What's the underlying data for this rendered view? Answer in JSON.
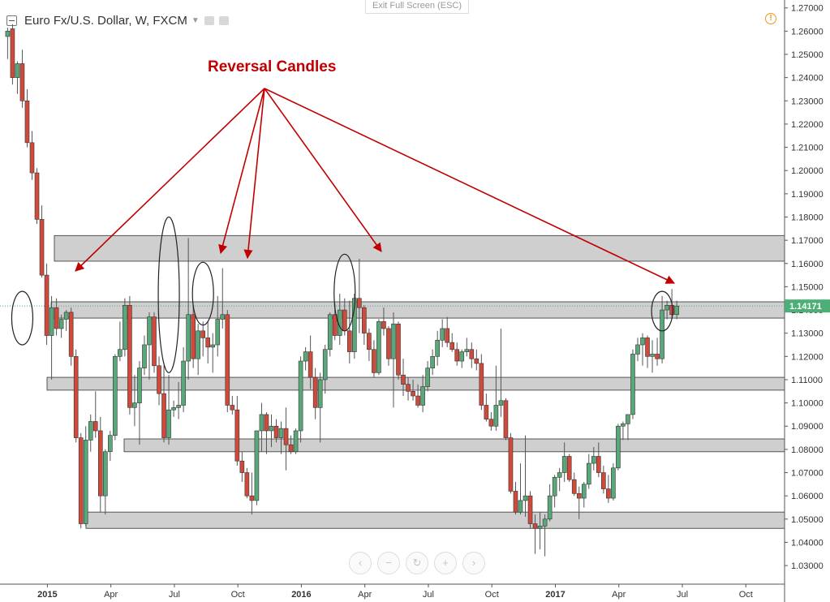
{
  "header": {
    "symbol": "Euro Fx/U.S. Dollar, W, FXCM",
    "exit_full_screen": "Exit Full Screen (ESC)"
  },
  "annotation": {
    "text": "Reversal Candles",
    "color": "#c00000"
  },
  "colors": {
    "up": "#5aa879",
    "down": "#d04a3b",
    "wick": "#555555",
    "zone_fill": "#cfcfcf",
    "zone_border": "#555555",
    "price_label": "#4caf78",
    "annotation": "#c00000"
  },
  "icons": {
    "hide": "square-minus-icon",
    "settings": "gear-icon",
    "alert": "alert-icon",
    "nav": [
      "chevron-left-icon",
      "minus-icon",
      "reset-icon",
      "plus-icon",
      "chevron-right-icon"
    ]
  },
  "chart_data": {
    "type": "candlestick",
    "title": "Euro Fx/U.S. Dollar, W, FXCM",
    "ylim": [
      1.022,
      1.272
    ],
    "y_ticks": [
      "1.27000",
      "1.26000",
      "1.25000",
      "1.24000",
      "1.23000",
      "1.22000",
      "1.21000",
      "1.20000",
      "1.19000",
      "1.18000",
      "1.17000",
      "1.16000",
      "1.15000",
      "1.14000",
      "1.13000",
      "1.12000",
      "1.11000",
      "1.10000",
      "1.09000",
      "1.08000",
      "1.07000",
      "1.06000",
      "1.05000",
      "1.04000",
      "1.03000"
    ],
    "current_price": "1.14171",
    "x_ticks": [
      {
        "label": "2015",
        "week": 0,
        "bold": true
      },
      {
        "label": "Apr",
        "week": 13
      },
      {
        "label": "Jul",
        "week": 26
      },
      {
        "label": "Oct",
        "week": 39
      },
      {
        "label": "2016",
        "week": 52,
        "bold": true
      },
      {
        "label": "Apr",
        "week": 65
      },
      {
        "label": "Jul",
        "week": 78
      },
      {
        "label": "Oct",
        "week": 91
      },
      {
        "label": "2017",
        "week": 104,
        "bold": true
      },
      {
        "label": "Apr",
        "week": 117
      },
      {
        "label": "Jul",
        "week": 130
      },
      {
        "label": "Oct",
        "week": 143
      }
    ],
    "zones": [
      [
        1.161,
        1.172
      ],
      [
        1.1365,
        1.1435
      ],
      [
        1.1055,
        1.111
      ],
      [
        1.079,
        1.0845
      ],
      [
        1.046,
        1.053
      ]
    ],
    "reversal_marks": [
      {
        "week": 3,
        "center": 1.1365,
        "half": 0.0115
      },
      {
        "week": 33,
        "center": 1.1465,
        "half": 0.0335
      },
      {
        "week": 40,
        "center": 1.147,
        "half": 0.0135
      },
      {
        "week": 69,
        "center": 1.1475,
        "half": 0.0165
      },
      {
        "week": 134,
        "center": 1.1395,
        "half": 0.0085
      }
    ],
    "candles_ohlc": [
      [
        1.2577,
        1.2615,
        1.248,
        1.26
      ],
      [
        1.261,
        1.263,
        1.237,
        1.24
      ],
      [
        1.24,
        1.247,
        1.233,
        1.246
      ],
      [
        1.246,
        1.252,
        1.227,
        1.23
      ],
      [
        1.23,
        1.235,
        1.21,
        1.212
      ],
      [
        1.212,
        1.217,
        1.196,
        1.199
      ],
      [
        1.199,
        1.201,
        1.177,
        1.179
      ],
      [
        1.179,
        1.185,
        1.154,
        1.155
      ],
      [
        1.155,
        1.16,
        1.125,
        1.129
      ],
      [
        1.129,
        1.146,
        1.11,
        1.141
      ],
      [
        1.141,
        1.145,
        1.129,
        1.132
      ],
      [
        1.132,
        1.138,
        1.128,
        1.136
      ],
      [
        1.136,
        1.14,
        1.131,
        1.139
      ],
      [
        1.139,
        1.141,
        1.116,
        1.12
      ],
      [
        1.12,
        1.123,
        1.083,
        1.085
      ],
      [
        1.085,
        1.087,
        1.046,
        1.048
      ],
      [
        1.048,
        1.09,
        1.047,
        1.084
      ],
      [
        1.084,
        1.095,
        1.079,
        1.092
      ],
      [
        1.092,
        1.105,
        1.085,
        1.088
      ],
      [
        1.088,
        1.094,
        1.053,
        1.06
      ],
      [
        1.06,
        1.08,
        1.052,
        1.079
      ],
      [
        1.079,
        1.088,
        1.075,
        1.086
      ],
      [
        1.086,
        1.121,
        1.084,
        1.12
      ],
      [
        1.12,
        1.135,
        1.118,
        1.123
      ],
      [
        1.123,
        1.145,
        1.12,
        1.142
      ],
      [
        1.142,
        1.146,
        1.095,
        1.098
      ],
      [
        1.098,
        1.112,
        1.09,
        1.1
      ],
      [
        1.1,
        1.118,
        1.082,
        1.115
      ],
      [
        1.115,
        1.129,
        1.112,
        1.125
      ],
      [
        1.125,
        1.139,
        1.11,
        1.137
      ],
      [
        1.137,
        1.139,
        1.113,
        1.116
      ],
      [
        1.116,
        1.12,
        1.099,
        1.104
      ],
      [
        1.104,
        1.116,
        1.083,
        1.085
      ],
      [
        1.085,
        1.112,
        1.082,
        1.097
      ],
      [
        1.097,
        1.101,
        1.094,
        1.098
      ],
      [
        1.098,
        1.109,
        1.093,
        1.099
      ],
      [
        1.099,
        1.124,
        1.096,
        1.118
      ],
      [
        1.118,
        1.171,
        1.11,
        1.138
      ],
      [
        1.138,
        1.142,
        1.115,
        1.119
      ],
      [
        1.119,
        1.134,
        1.112,
        1.131
      ],
      [
        1.131,
        1.135,
        1.12,
        1.128
      ],
      [
        1.128,
        1.135,
        1.117,
        1.124
      ],
      [
        1.124,
        1.13,
        1.113,
        1.125
      ],
      [
        1.125,
        1.146,
        1.12,
        1.136
      ],
      [
        1.136,
        1.158,
        1.132,
        1.138
      ],
      [
        1.138,
        1.14,
        1.096,
        1.099
      ],
      [
        1.099,
        1.103,
        1.095,
        1.097
      ],
      [
        1.097,
        1.103,
        1.073,
        1.075
      ],
      [
        1.075,
        1.079,
        1.066,
        1.07
      ],
      [
        1.07,
        1.072,
        1.059,
        1.06
      ],
      [
        1.06,
        1.07,
        1.052,
        1.058
      ],
      [
        1.058,
        1.088,
        1.056,
        1.088
      ],
      [
        1.088,
        1.1,
        1.079,
        1.095
      ],
      [
        1.095,
        1.096,
        1.078,
        1.088
      ],
      [
        1.088,
        1.095,
        1.081,
        1.09
      ],
      [
        1.09,
        1.093,
        1.083,
        1.085
      ],
      [
        1.085,
        1.092,
        1.078,
        1.089
      ],
      [
        1.089,
        1.098,
        1.071,
        1.082
      ],
      [
        1.082,
        1.086,
        1.078,
        1.079
      ],
      [
        1.079,
        1.089,
        1.078,
        1.088
      ],
      [
        1.088,
        1.12,
        1.083,
        1.118
      ],
      [
        1.118,
        1.124,
        1.114,
        1.122
      ],
      [
        1.122,
        1.129,
        1.106,
        1.111
      ],
      [
        1.111,
        1.115,
        1.093,
        1.098
      ],
      [
        1.098,
        1.113,
        1.083,
        1.11
      ],
      [
        1.11,
        1.125,
        1.104,
        1.123
      ],
      [
        1.123,
        1.139,
        1.12,
        1.138
      ],
      [
        1.138,
        1.143,
        1.127,
        1.129
      ],
      [
        1.129,
        1.147,
        1.125,
        1.14
      ],
      [
        1.14,
        1.145,
        1.129,
        1.131
      ],
      [
        1.131,
        1.144,
        1.117,
        1.122
      ],
      [
        1.122,
        1.147,
        1.119,
        1.145
      ],
      [
        1.145,
        1.162,
        1.13,
        1.141
      ],
      [
        1.141,
        1.142,
        1.125,
        1.13
      ],
      [
        1.13,
        1.132,
        1.118,
        1.123
      ],
      [
        1.123,
        1.127,
        1.111,
        1.113
      ],
      [
        1.113,
        1.136,
        1.112,
        1.135
      ],
      [
        1.135,
        1.141,
        1.129,
        1.132
      ],
      [
        1.132,
        1.133,
        1.116,
        1.119
      ],
      [
        1.119,
        1.139,
        1.098,
        1.134
      ],
      [
        1.134,
        1.135,
        1.11,
        1.112
      ],
      [
        1.112,
        1.119,
        1.103,
        1.108
      ],
      [
        1.108,
        1.111,
        1.101,
        1.105
      ],
      [
        1.105,
        1.11,
        1.101,
        1.103
      ],
      [
        1.103,
        1.108,
        1.098,
        1.099
      ],
      [
        1.099,
        1.112,
        1.096,
        1.107
      ],
      [
        1.107,
        1.118,
        1.105,
        1.115
      ],
      [
        1.115,
        1.123,
        1.112,
        1.12
      ],
      [
        1.12,
        1.131,
        1.116,
        1.127
      ],
      [
        1.127,
        1.136,
        1.124,
        1.132
      ],
      [
        1.132,
        1.137,
        1.124,
        1.126
      ],
      [
        1.126,
        1.13,
        1.122,
        1.123
      ],
      [
        1.123,
        1.126,
        1.116,
        1.118
      ],
      [
        1.118,
        1.123,
        1.115,
        1.122
      ],
      [
        1.122,
        1.128,
        1.12,
        1.123
      ],
      [
        1.123,
        1.126,
        1.115,
        1.119
      ],
      [
        1.119,
        1.123,
        1.114,
        1.117
      ],
      [
        1.117,
        1.121,
        1.097,
        1.099
      ],
      [
        1.099,
        1.104,
        1.092,
        1.093
      ],
      [
        1.093,
        1.096,
        1.088,
        1.09
      ],
      [
        1.09,
        1.116,
        1.088,
        1.099
      ],
      [
        1.099,
        1.132,
        1.094,
        1.101
      ],
      [
        1.101,
        1.102,
        1.084,
        1.085
      ],
      [
        1.085,
        1.087,
        1.061,
        1.062
      ],
      [
        1.062,
        1.066,
        1.052,
        1.053
      ],
      [
        1.053,
        1.074,
        1.052,
        1.058
      ],
      [
        1.058,
        1.086,
        1.051,
        1.06
      ],
      [
        1.06,
        1.062,
        1.046,
        1.048
      ],
      [
        1.048,
        1.052,
        1.035,
        1.046
      ],
      [
        1.046,
        1.053,
        1.037,
        1.047
      ],
      [
        1.047,
        1.052,
        1.034,
        1.05
      ],
      [
        1.05,
        1.065,
        1.049,
        1.06
      ],
      [
        1.06,
        1.069,
        1.055,
        1.068
      ],
      [
        1.068,
        1.072,
        1.062,
        1.07
      ],
      [
        1.07,
        1.083,
        1.066,
        1.077
      ],
      [
        1.077,
        1.078,
        1.066,
        1.067
      ],
      [
        1.067,
        1.07,
        1.06,
        1.061
      ],
      [
        1.061,
        1.064,
        1.05,
        1.059
      ],
      [
        1.059,
        1.066,
        1.055,
        1.065
      ],
      [
        1.065,
        1.078,
        1.063,
        1.074
      ],
      [
        1.074,
        1.081,
        1.071,
        1.077
      ],
      [
        1.077,
        1.083,
        1.068,
        1.07
      ],
      [
        1.07,
        1.073,
        1.061,
        1.063
      ],
      [
        1.063,
        1.069,
        1.057,
        1.059
      ],
      [
        1.059,
        1.074,
        1.058,
        1.072
      ],
      [
        1.072,
        1.091,
        1.071,
        1.09
      ],
      [
        1.09,
        1.092,
        1.084,
        1.091
      ],
      [
        1.091,
        1.094,
        1.084,
        1.095
      ],
      [
        1.095,
        1.123,
        1.093,
        1.121
      ],
      [
        1.121,
        1.128,
        1.118,
        1.125
      ],
      [
        1.125,
        1.13,
        1.116,
        1.128
      ],
      [
        1.128,
        1.129,
        1.115,
        1.12
      ],
      [
        1.12,
        1.127,
        1.113,
        1.121
      ],
      [
        1.121,
        1.128,
        1.116,
        1.119
      ],
      [
        1.119,
        1.146,
        1.117,
        1.14
      ],
      [
        1.14,
        1.144,
        1.136,
        1.142
      ],
      [
        1.142,
        1.149,
        1.137,
        1.138
      ],
      [
        1.138,
        1.144,
        1.136,
        1.1417
      ]
    ]
  },
  "navbar": {
    "labels": [
      "‹",
      "−",
      "↻",
      "+",
      "›"
    ]
  }
}
